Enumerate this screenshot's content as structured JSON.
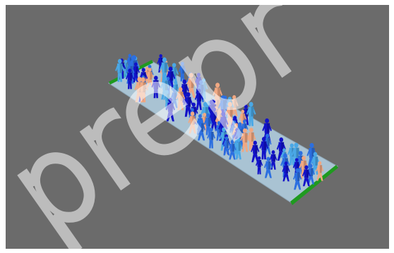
{
  "scene": {
    "background": "#6b6b6b",
    "floor_color": "#a9c3d3",
    "gate_color": "#1f9a1f",
    "pedestrian_colors": [
      "#1212c8",
      "#2c6fe0",
      "#4aa8e6",
      "#f0a882"
    ]
  },
  "watermark": {
    "text": "prepr"
  }
}
